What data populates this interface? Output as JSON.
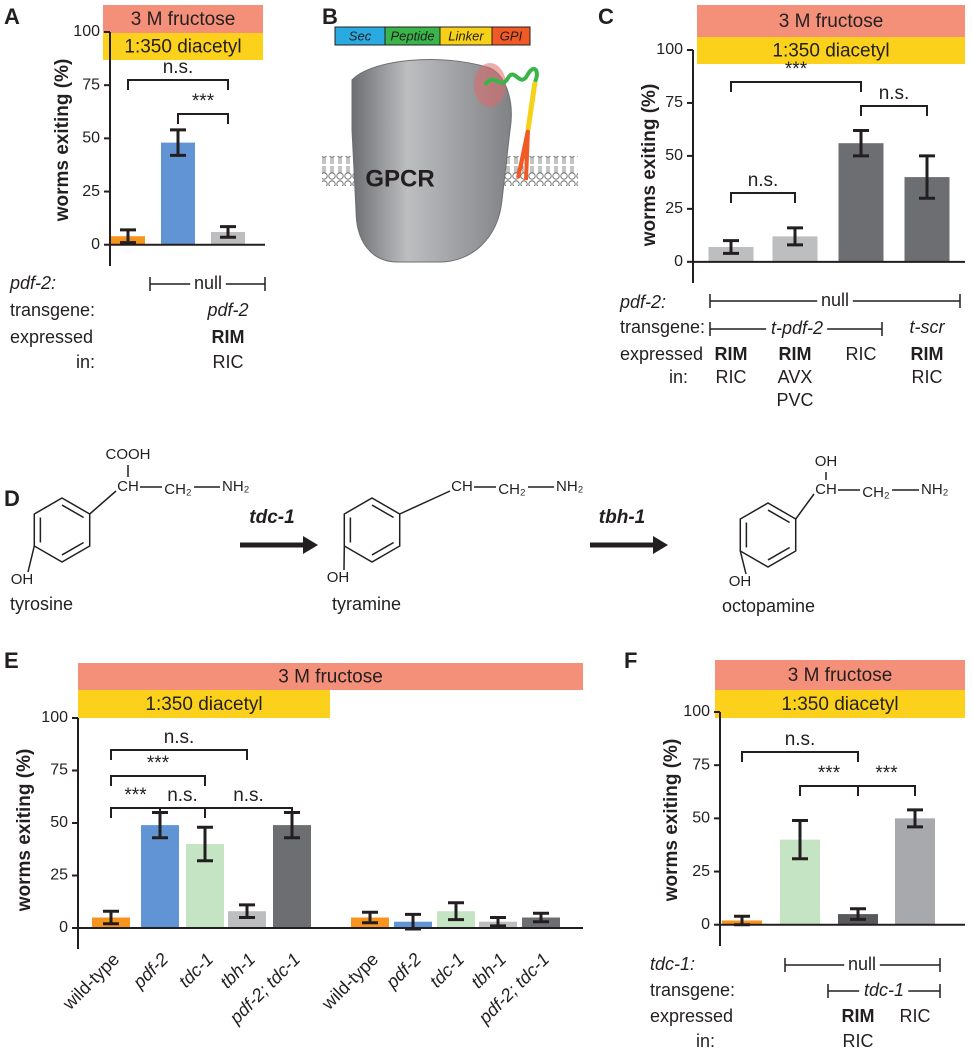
{
  "panel_labels": [
    "A",
    "B",
    "C",
    "D",
    "E",
    "F"
  ],
  "chart_data": [
    {
      "type": "bar",
      "conditions": [
        "3 M fructose",
        "1:350 diacetyl"
      ],
      "ylabel": "worms exiting (%)",
      "categories": [
        null,
        null,
        null
      ],
      "values": [
        4,
        48,
        6
      ],
      "errors": [
        3,
        6,
        2.5
      ],
      "colors": [
        "#f7941d",
        "#6194d4",
        "#bcbec0"
      ],
      "condition_colors": [
        "#f4907a",
        "#fbd11c"
      ],
      "ylim": [
        -10,
        100
      ],
      "yticks": [
        0,
        25,
        50,
        75,
        100
      ],
      "significance": [
        "n.s.",
        "***"
      ],
      "genotype": [
        "pdf-2:",
        "null",
        "transgene:",
        "pdf-2",
        "expressed",
        "in:",
        "RIM",
        "RIC"
      ]
    },
    {
      "type": "bar",
      "conditions": [
        "3 M fructose",
        "1:350 diacetyl"
      ],
      "ylabel": "worms exiting (%)",
      "categories": [
        null,
        null,
        null,
        null
      ],
      "values": [
        7,
        12,
        56,
        40
      ],
      "errors": [
        3,
        4,
        6,
        10
      ],
      "colors": [
        "#bcbec0",
        "#bcbec0",
        "#6d6e71",
        "#6d6e71"
      ],
      "condition_colors": [
        "#f4907a",
        "#fbd11c"
      ],
      "ylim": [
        -10,
        100
      ],
      "yticks": [
        0,
        25,
        50,
        75,
        100
      ],
      "significance": [
        "***",
        "n.s.",
        "n.s."
      ],
      "genotype": [
        "pdf-2:",
        "null",
        "transgene:",
        "t-pdf-2",
        "t-scr",
        "expressed",
        "in:",
        "RIM",
        "RIC",
        "RIM",
        "AVX",
        "PVC",
        "RIC",
        "RIM",
        "RIC"
      ]
    },
    {
      "type": "bar",
      "conditions": [
        "3 M fructose",
        "1:350 diacetyl"
      ],
      "ylabel": "worms exiting (%)",
      "categories": [
        "wild-type",
        "pdf-2",
        "tdc-1",
        "tbh-1",
        "pdf-2; tdc-1",
        "wild-type",
        "pdf-2",
        "tdc-1",
        "tbh-1",
        "pdf-2; tdc-1"
      ],
      "values": [
        5,
        49,
        40,
        8,
        49,
        5,
        3,
        8,
        3,
        5
      ],
      "errors": [
        3,
        6,
        8,
        3,
        6,
        2.5,
        3.5,
        4,
        2,
        2
      ],
      "colors": [
        "#f7941d",
        "#6194d4",
        "#c5e4c3",
        "#bcbec0",
        "#6d6e71",
        "#f7941d",
        "#6194d4",
        "#c5e4c3",
        "#bcbec0",
        "#6d6e71"
      ],
      "condition_colors": [
        "#f4907a",
        "#fbd11c"
      ],
      "ylim": [
        -10,
        100
      ],
      "yticks": [
        0,
        25,
        50,
        75,
        100
      ],
      "significance": [
        "n.s.",
        "***",
        "***",
        "n.s.",
        "n.s."
      ]
    },
    {
      "type": "bar",
      "conditions": [
        "3 M fructose",
        "1:350 diacetyl"
      ],
      "ylabel": "worms exiting (%)",
      "categories": [
        null,
        null,
        null,
        null
      ],
      "values": [
        2,
        40,
        5,
        50
      ],
      "errors": [
        2,
        9,
        2.5,
        4
      ],
      "colors": [
        "#f7941d",
        "#c5e4c3",
        "#58595b",
        "#a7a9ac"
      ],
      "condition_colors": [
        "#f4907a",
        "#fbd11c"
      ],
      "ylim": [
        -10,
        100
      ],
      "yticks": [
        0,
        25,
        50,
        75,
        100
      ],
      "significance": [
        "n.s.",
        "***",
        "***"
      ],
      "genotype": [
        "tdc-1:",
        "null",
        "transgene:",
        "tdc-1",
        "expressed",
        "in:",
        "RIM",
        "RIC",
        "RIC"
      ]
    }
  ],
  "diagram_b": {
    "construct": [
      "Sec",
      "Peptide",
      "Linker",
      "GPI"
    ],
    "receptor": "GPCR"
  },
  "diagram_d": {
    "compounds": [
      {
        "name": "tyrosine",
        "groups": [
          "COOH",
          "CH",
          "CH₂",
          "NH₂",
          "OH"
        ]
      },
      {
        "name": "tyramine",
        "groups": [
          "CH",
          "CH₂",
          "NH₂",
          "OH"
        ]
      },
      {
        "name": "octopamine",
        "groups": [
          "OH",
          "CH",
          "CH₂",
          "NH₂",
          "OH"
        ]
      }
    ],
    "enzymes": [
      "tdc-1",
      "tbh-1"
    ]
  }
}
